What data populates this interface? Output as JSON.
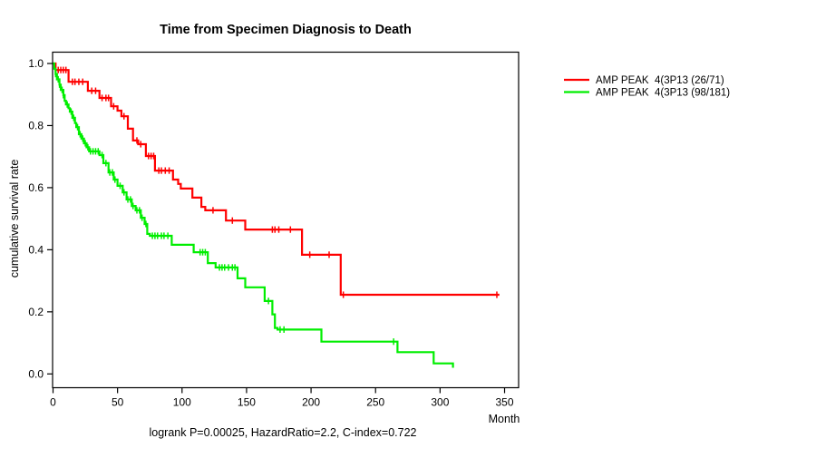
{
  "figure": {
    "title": "Time from Specimen Diagnosis to Death",
    "x_axis_label": "Month",
    "y_axis_label": "cumulative survival rate",
    "annotation": "logrank P=0.00025, HazardRatio=2.2, C-index=0.722"
  },
  "legend": {
    "entries": [
      {
        "label": "AMP PEAK  4(3P13 (26/71)",
        "color": "#ff0000"
      },
      {
        "label": "AMP PEAK  4(3P13 (98/181)",
        "color": "#00ee00"
      }
    ]
  },
  "chart_data": {
    "type": "line",
    "subtype": "kaplan-meier-step",
    "title": "Time from Specimen Diagnosis to Death",
    "xlabel": "Month",
    "ylabel": "cumulative survival rate",
    "xlim": [
      0,
      350
    ],
    "ylim": [
      0.0,
      1.0
    ],
    "x_ticks": [
      0,
      50,
      100,
      150,
      200,
      250,
      300,
      350
    ],
    "y_ticks": [
      0.0,
      0.2,
      0.4,
      0.6,
      0.8,
      1.0
    ],
    "grid": false,
    "legend_position": "right-outside",
    "stats": {
      "logrank_p": "0.00025",
      "hazard_ratio": "2.2",
      "c_index": "0.722"
    },
    "series": [
      {
        "name": "AMP PEAK  4(3P13 (26/71)",
        "color": "#ff0000",
        "events": 26,
        "n": 71,
        "end_time": 346,
        "steps": [
          [
            0,
            1.0
          ],
          [
            2,
            0.979
          ],
          [
            12,
            0.941
          ],
          [
            27,
            0.912
          ],
          [
            36,
            0.889
          ],
          [
            45,
            0.862
          ],
          [
            50,
            0.848
          ],
          [
            53,
            0.83
          ],
          [
            58,
            0.79
          ],
          [
            62,
            0.752
          ],
          [
            66,
            0.74
          ],
          [
            72,
            0.702
          ],
          [
            79,
            0.655
          ],
          [
            93,
            0.626
          ],
          [
            97,
            0.612
          ],
          [
            99,
            0.597
          ],
          [
            108,
            0.568
          ],
          [
            115,
            0.538
          ],
          [
            118,
            0.527
          ],
          [
            134,
            0.494
          ],
          [
            149,
            0.465
          ],
          [
            193,
            0.384
          ],
          [
            223,
            0.255
          ]
        ],
        "censors": [
          [
            4,
            0.979
          ],
          [
            6,
            0.979
          ],
          [
            8,
            0.979
          ],
          [
            10,
            0.979
          ],
          [
            15,
            0.941
          ],
          [
            17,
            0.941
          ],
          [
            20,
            0.941
          ],
          [
            23,
            0.941
          ],
          [
            30,
            0.912
          ],
          [
            33,
            0.912
          ],
          [
            38,
            0.889
          ],
          [
            41,
            0.889
          ],
          [
            43,
            0.889
          ],
          [
            47,
            0.862
          ],
          [
            55,
            0.83
          ],
          [
            65,
            0.752
          ],
          [
            68,
            0.74
          ],
          [
            74,
            0.702
          ],
          [
            76,
            0.702
          ],
          [
            78,
            0.702
          ],
          [
            82,
            0.655
          ],
          [
            84,
            0.655
          ],
          [
            87,
            0.655
          ],
          [
            90,
            0.655
          ],
          [
            124,
            0.527
          ],
          [
            139,
            0.494
          ],
          [
            170,
            0.465
          ],
          [
            172,
            0.465
          ],
          [
            175,
            0.465
          ],
          [
            184,
            0.465
          ],
          [
            199,
            0.384
          ],
          [
            214,
            0.384
          ],
          [
            225,
            0.255
          ],
          [
            344,
            0.255
          ]
        ]
      },
      {
        "name": "AMP PEAK  4(3P13 (98/181)",
        "color": "#00ee00",
        "events": 98,
        "n": 181,
        "end_time": 310,
        "steps": [
          [
            0,
            1.0
          ],
          [
            1,
            0.983
          ],
          [
            2,
            0.966
          ],
          [
            3,
            0.949
          ],
          [
            5,
            0.932
          ],
          [
            6,
            0.915
          ],
          [
            8,
            0.898
          ],
          [
            9,
            0.88
          ],
          [
            10,
            0.868
          ],
          [
            12,
            0.856
          ],
          [
            13,
            0.845
          ],
          [
            15,
            0.825
          ],
          [
            17,
            0.808
          ],
          [
            18,
            0.795
          ],
          [
            20,
            0.772
          ],
          [
            22,
            0.758
          ],
          [
            24,
            0.743
          ],
          [
            26,
            0.73
          ],
          [
            28,
            0.717
          ],
          [
            36,
            0.705
          ],
          [
            39,
            0.679
          ],
          [
            43,
            0.649
          ],
          [
            47,
            0.626
          ],
          [
            50,
            0.606
          ],
          [
            54,
            0.585
          ],
          [
            57,
            0.562
          ],
          [
            61,
            0.541
          ],
          [
            64,
            0.527
          ],
          [
            68,
            0.503
          ],
          [
            71,
            0.483
          ],
          [
            73,
            0.451
          ],
          [
            75,
            0.445
          ],
          [
            92,
            0.416
          ],
          [
            109,
            0.392
          ],
          [
            120,
            0.357
          ],
          [
            126,
            0.343
          ],
          [
            143,
            0.308
          ],
          [
            149,
            0.279
          ],
          [
            164,
            0.235
          ],
          [
            170,
            0.192
          ],
          [
            172,
            0.148
          ],
          [
            174,
            0.143
          ],
          [
            208,
            0.104
          ],
          [
            267,
            0.07
          ],
          [
            295,
            0.034
          ],
          [
            310,
            0.02
          ]
        ],
        "censors": [
          [
            2,
            0.966
          ],
          [
            4,
            0.949
          ],
          [
            5,
            0.932
          ],
          [
            7,
            0.915
          ],
          [
            8,
            0.898
          ],
          [
            11,
            0.868
          ],
          [
            14,
            0.845
          ],
          [
            16,
            0.825
          ],
          [
            19,
            0.795
          ],
          [
            21,
            0.772
          ],
          [
            23,
            0.758
          ],
          [
            25,
            0.743
          ],
          [
            27,
            0.73
          ],
          [
            29,
            0.717
          ],
          [
            31,
            0.717
          ],
          [
            33,
            0.717
          ],
          [
            35,
            0.717
          ],
          [
            38,
            0.705
          ],
          [
            41,
            0.679
          ],
          [
            44,
            0.649
          ],
          [
            46,
            0.649
          ],
          [
            48,
            0.626
          ],
          [
            52,
            0.606
          ],
          [
            55,
            0.585
          ],
          [
            58,
            0.562
          ],
          [
            60,
            0.562
          ],
          [
            62,
            0.541
          ],
          [
            65,
            0.527
          ],
          [
            67,
            0.527
          ],
          [
            69,
            0.503
          ],
          [
            72,
            0.483
          ],
          [
            77,
            0.445
          ],
          [
            79,
            0.445
          ],
          [
            81,
            0.445
          ],
          [
            84,
            0.445
          ],
          [
            86,
            0.445
          ],
          [
            89,
            0.445
          ],
          [
            114,
            0.392
          ],
          [
            116,
            0.392
          ],
          [
            118,
            0.392
          ],
          [
            129,
            0.343
          ],
          [
            131,
            0.343
          ],
          [
            133,
            0.343
          ],
          [
            136,
            0.343
          ],
          [
            139,
            0.343
          ],
          [
            141,
            0.343
          ],
          [
            167,
            0.235
          ],
          [
            176,
            0.143
          ],
          [
            179,
            0.143
          ],
          [
            264,
            0.104
          ]
        ]
      }
    ]
  }
}
